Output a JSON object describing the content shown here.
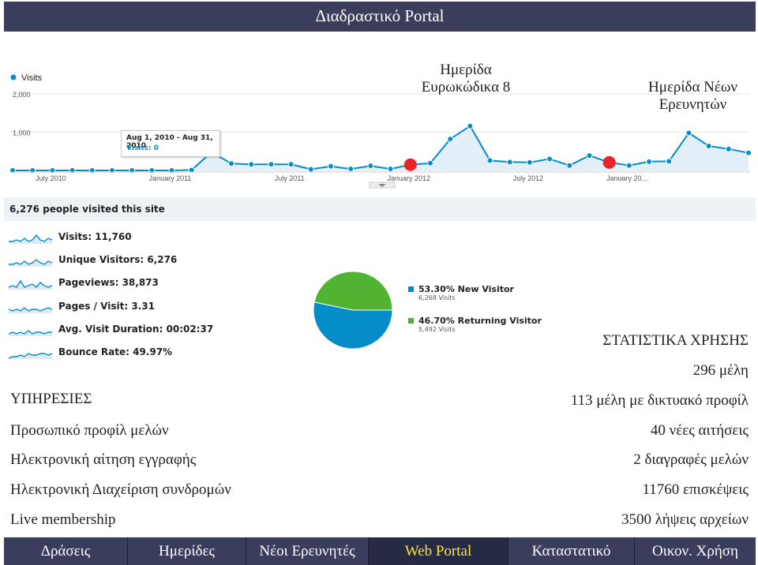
{
  "window": {
    "title": "Διαδραστικό Portal"
  },
  "chart": {
    "legend_label": "Visits",
    "y_ticks": [
      "2,000",
      "1,000"
    ],
    "x_ticks": [
      "July 2010",
      "January 2011",
      "July 2011",
      "January 2012",
      "July 2012",
      "January 20..."
    ],
    "tooltip": {
      "date": "Aug 1, 2010 - Aug 31, 2010",
      "value": "Visits: 0"
    },
    "annotations": {
      "event1": "Ημερίδα Ευρωκώδικα 8",
      "event2": "Ημερίδα Νέων Ερευνητών"
    },
    "chart_data": {
      "type": "area",
      "title": "",
      "ylim": [
        0,
        2000
      ],
      "series": [
        {
          "name": "Visits",
          "x": [
            "2010-05",
            "2010-06",
            "2010-07",
            "2010-08",
            "2010-09",
            "2010-10",
            "2010-11",
            "2010-12",
            "2011-01",
            "2011-02",
            "2011-03",
            "2011-04",
            "2011-05",
            "2011-06",
            "2011-07",
            "2011-08",
            "2011-09",
            "2011-10",
            "2011-11",
            "2011-12",
            "2012-01",
            "2012-02",
            "2012-03",
            "2012-04",
            "2012-05",
            "2012-06",
            "2012-07",
            "2012-08",
            "2012-09",
            "2012-10",
            "2012-11",
            "2012-12",
            "2013-01",
            "2013-02",
            "2013-03",
            "2013-04",
            "2013-05",
            "2013-06"
          ],
          "values": [
            0,
            0,
            0,
            0,
            0,
            0,
            0,
            0,
            0,
            10,
            480,
            180,
            160,
            160,
            160,
            30,
            110,
            40,
            120,
            40,
            150,
            190,
            820,
            1160,
            260,
            220,
            210,
            300,
            130,
            390,
            210,
            130,
            230,
            240,
            980,
            640,
            560,
            460
          ]
        }
      ],
      "highlighted_points": [
        {
          "x": "2012-01",
          "label": "Ημερίδα Ευρωκώδικα 8"
        },
        {
          "x": "2012-11",
          "label": "Ημερίδα Νέων Ερευνητών"
        }
      ],
      "colors": {
        "line": "#058dc7",
        "fill": "#e2eff7",
        "highlight": "#e8232a"
      }
    }
  },
  "audience": {
    "headline": "6,276 people visited this site"
  },
  "metrics": [
    {
      "label": "Visits: 11,760"
    },
    {
      "label": "Unique Visitors: 6,276"
    },
    {
      "label": "Pageviews: 38,873"
    },
    {
      "label": "Pages / Visit: 3.31"
    },
    {
      "label": "Avg. Visit Duration: 00:02:37"
    },
    {
      "label": "Bounce Rate: 49.97%"
    }
  ],
  "pie": {
    "legend": [
      {
        "pct": "53.30%",
        "name": "New Visitor",
        "sub": "6,268 Visits",
        "color": "#058dc7"
      },
      {
        "pct": "46.70%",
        "name": "Returning Visitor",
        "sub": "5,492 Visits",
        "color": "#50b432"
      }
    ],
    "chart_data": {
      "type": "pie",
      "categories": [
        "New Visitor",
        "Returning Visitor"
      ],
      "values": [
        53.3,
        46.7
      ]
    }
  },
  "services": {
    "heading": "ΥΠΗΡΕΣΙΕΣ",
    "items": [
      "Προσωπικό προφίλ μελών",
      "Ηλεκτρονική αίτηση εγγραφής",
      "Ηλεκτρονική Διαχείριση συνδρομών",
      "Live membership"
    ]
  },
  "stats": {
    "heading": "ΣΤΑΤΙΣΤΙΚΑ ΧΡΗΣΗΣ",
    "items": [
      "296 μέλη",
      "113 μέλη με δικτυακό προφίλ",
      "40 νέες αιτήσεις",
      "2 διαγραφές μελών",
      "11760 επισκέψεις",
      "3500 λήψεις αρχείων"
    ]
  },
  "nav": {
    "items": [
      "Δράσεις",
      "Ημερίδες",
      "Νέοι Ερευνητές",
      "Web Portal",
      "Καταστατικό",
      "Οικον. Χρήση"
    ],
    "active": "Web Portal"
  }
}
